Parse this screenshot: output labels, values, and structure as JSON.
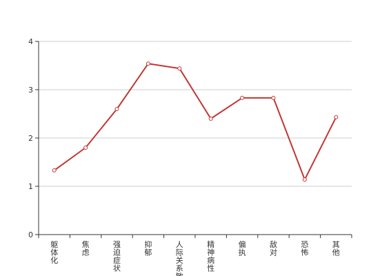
{
  "chart_data": {
    "type": "line",
    "categories": [
      "躯体化",
      "焦虑",
      "强迫症状",
      "抑郁",
      "人际关系敏感",
      "精神病性",
      "偏执",
      "敌对",
      "恐怖",
      "其他"
    ],
    "series": [
      {
        "values": [
          1.33,
          1.8,
          2.6,
          3.54,
          3.44,
          2.4,
          2.83,
          2.83,
          1.14,
          2.43
        ]
      }
    ],
    "xlabel": "",
    "ylabel": "",
    "ylim": [
      0,
      4
    ],
    "yticks": [
      0,
      1,
      2,
      3,
      4
    ],
    "grid": true,
    "line_color": "#c23531"
  }
}
